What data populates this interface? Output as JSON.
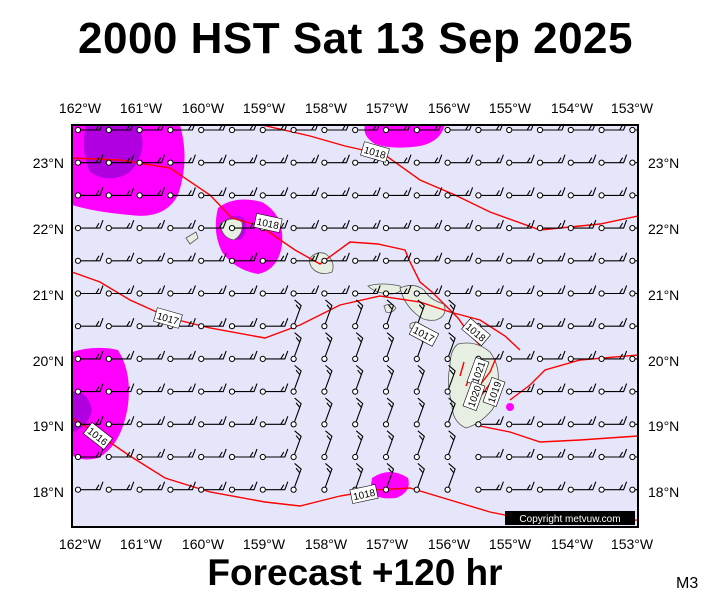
{
  "title": "2000 HST Sat 13 Sep 2025",
  "footer": "Forecast +120 hr",
  "model_code": "M3",
  "copyright": "Copyright metvuw.com",
  "lon_labels": [
    "162°W",
    "161°W",
    "160°W",
    "159°W",
    "158°W",
    "157°W",
    "156°W",
    "155°W",
    "154°W",
    "153°W"
  ],
  "lat_labels": [
    "23°N",
    "22°N",
    "21°N",
    "20°N",
    "19°N",
    "18°N"
  ],
  "pressure_labels": [
    "1018",
    "1018",
    "1017",
    "1017",
    "1018",
    "1021",
    "1020",
    "1019",
    "1016",
    "1018"
  ],
  "colors": {
    "background": "#e6e6fa",
    "isobar": "#ff0000",
    "rain_light": "#ff00ff",
    "rain_heavy": "#9900cc",
    "land": "#e6efe2",
    "wind_barb": "#000000"
  }
}
